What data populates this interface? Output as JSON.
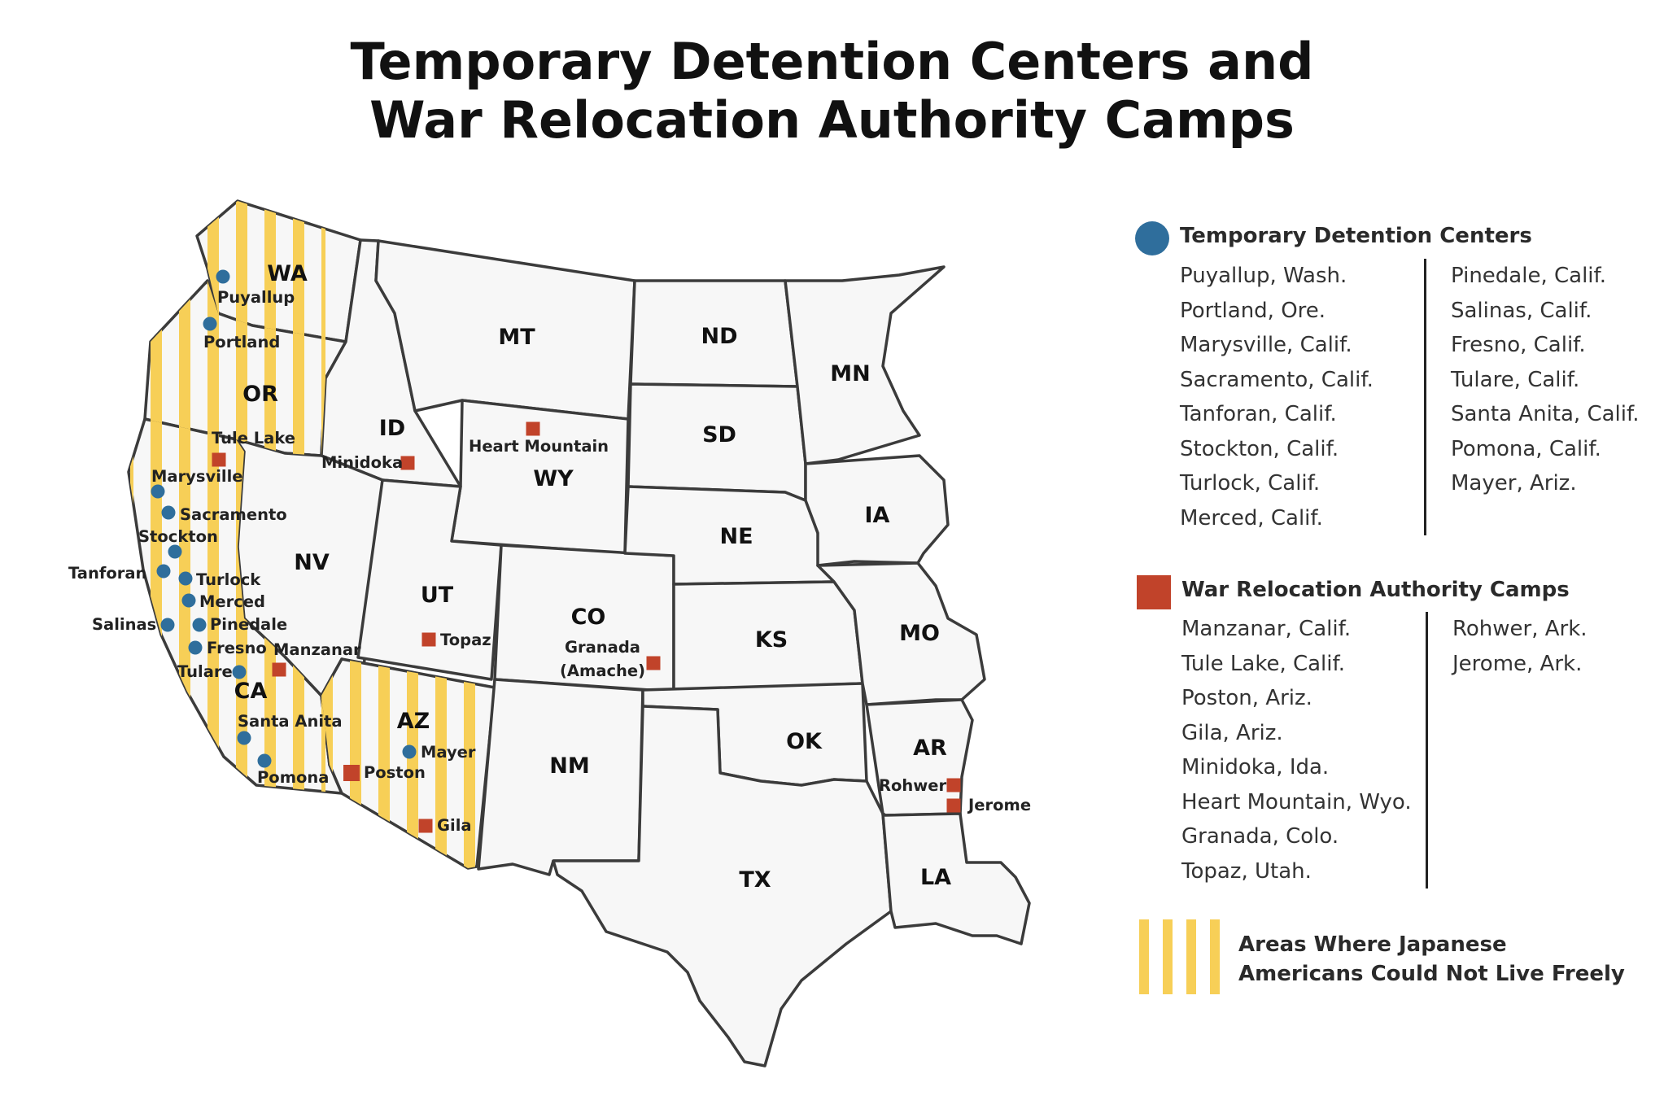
{
  "title": {
    "line1": "Temporary Detention Centers and",
    "line2": "War Relocation Authority Camps"
  },
  "colors": {
    "detention": "#2f6e9c",
    "wra": "#c1432a",
    "restricted": "#f7cf57",
    "state_fill": "#f7f7f7",
    "border": "#3b3b3b"
  },
  "states": [
    "WA",
    "OR",
    "CA",
    "ID",
    "NV",
    "MT",
    "WY",
    "UT",
    "AZ",
    "CO",
    "NM",
    "ND",
    "SD",
    "NE",
    "KS",
    "OK",
    "TX",
    "MN",
    "IA",
    "MO",
    "AR",
    "LA"
  ],
  "detention_centers": [
    "Puyallup",
    "Portland",
    "Marysville",
    "Sacramento",
    "Stockton",
    "Tanforan",
    "Turlock",
    "Merced",
    "Salinas",
    "Pinedale",
    "Fresno",
    "Tulare",
    "Santa Anita",
    "Pomona",
    "Mayer"
  ],
  "wra_camps": [
    "Tule Lake",
    "Minidoka",
    "Heart Mountain",
    "Topaz",
    "Manzanar",
    "Poston",
    "Gila",
    "Rohwer",
    "Jerome"
  ],
  "map_extra_labels": {
    "granada_line1": "Granada",
    "granada_line2": "(Amache)"
  },
  "legend": {
    "detention": {
      "icon": "blue-circle",
      "heading": "Temporary Detention Centers",
      "col1": [
        "Puyallup, Wash.",
        "Portland, Ore.",
        "Marysville, Calif.",
        "Sacramento, Calif.",
        "Tanforan, Calif.",
        "Stockton, Calif.",
        "Turlock, Calif.",
        "Merced, Calif."
      ],
      "col2": [
        "Pinedale, Calif.",
        "Salinas, Calif.",
        "Fresno, Calif.",
        "Tulare, Calif.",
        "Santa Anita, Calif.",
        "Pomona, Calif.",
        "Mayer, Ariz."
      ]
    },
    "wra": {
      "icon": "red-square",
      "heading": "War Relocation Authority Camps",
      "col1": [
        "Manzanar, Calif.",
        "Tule Lake, Calif.",
        "Poston, Ariz.",
        "Gila, Ariz.",
        "Minidoka, Ida.",
        "Heart Mountain, Wyo.",
        "Granada, Colo.",
        "Topaz, Utah."
      ],
      "col2": [
        "Rohwer, Ark.",
        "Jerome, Ark."
      ]
    },
    "restricted": {
      "icon": "yellow-stripes",
      "line1": "Areas Where Japanese",
      "line2": "Americans Could Not Live Freely"
    }
  }
}
